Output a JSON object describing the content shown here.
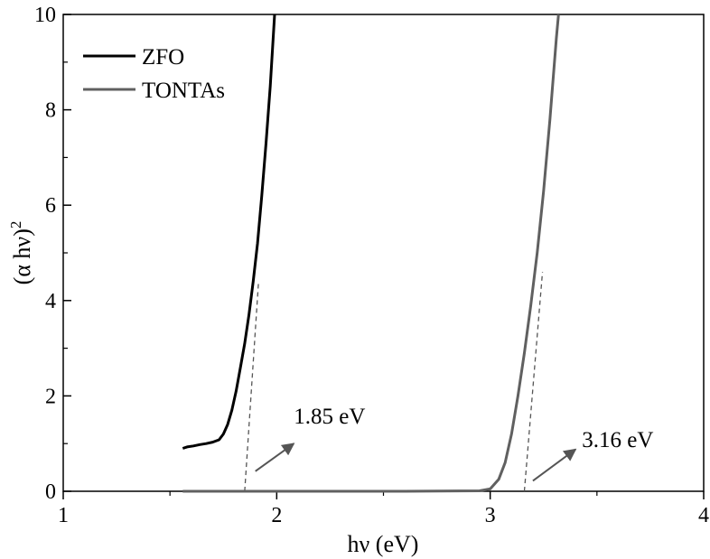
{
  "chart_data": {
    "type": "line",
    "title": "",
    "xlabel": "hν (eV)",
    "ylabel_main": "(α hν)",
    "ylabel_sup": "2",
    "xlim": [
      1,
      4
    ],
    "ylim": [
      0,
      10
    ],
    "x_ticks": [
      1,
      2,
      3,
      4
    ],
    "x_tick_labels": [
      "1",
      "2",
      "3",
      "4"
    ],
    "y_ticks": [
      0,
      2,
      4,
      6,
      8,
      10
    ],
    "y_tick_labels": [
      "0",
      "2",
      "4",
      "6",
      "8",
      "10"
    ],
    "grid": false,
    "legend_position": "top-left",
    "series": [
      {
        "name": "ZFO",
        "color": "#000000",
        "points": [
          [
            1.56,
            0.9
          ],
          [
            1.58,
            0.93
          ],
          [
            1.61,
            0.95
          ],
          [
            1.64,
            0.98
          ],
          [
            1.67,
            1.0
          ],
          [
            1.7,
            1.03
          ],
          [
            1.73,
            1.08
          ],
          [
            1.75,
            1.2
          ],
          [
            1.77,
            1.4
          ],
          [
            1.79,
            1.7
          ],
          [
            1.81,
            2.1
          ],
          [
            1.83,
            2.6
          ],
          [
            1.85,
            3.1
          ],
          [
            1.87,
            3.7
          ],
          [
            1.89,
            4.4
          ],
          [
            1.91,
            5.2
          ],
          [
            1.93,
            6.2
          ],
          [
            1.95,
            7.3
          ],
          [
            1.97,
            8.5
          ],
          [
            1.99,
            10.0
          ]
        ]
      },
      {
        "name": "TONTAs",
        "color": "#606060",
        "points": [
          [
            1.56,
            0.0
          ],
          [
            1.8,
            0.0
          ],
          [
            2.2,
            0.0
          ],
          [
            2.6,
            0.0
          ],
          [
            2.95,
            0.01
          ],
          [
            3.0,
            0.05
          ],
          [
            3.04,
            0.25
          ],
          [
            3.07,
            0.6
          ],
          [
            3.1,
            1.2
          ],
          [
            3.13,
            2.0
          ],
          [
            3.16,
            2.9
          ],
          [
            3.19,
            3.9
          ],
          [
            3.22,
            5.0
          ],
          [
            3.25,
            6.3
          ],
          [
            3.28,
            7.8
          ],
          [
            3.31,
            9.5
          ],
          [
            3.32,
            10.0
          ]
        ]
      }
    ],
    "tangent_lines": [
      {
        "x": [
          1.85,
          1.915
        ],
        "y": [
          0.0,
          4.4
        ]
      },
      {
        "x": [
          3.16,
          3.245
        ],
        "y": [
          0.0,
          4.6
        ]
      }
    ],
    "annotations": [
      {
        "text": "1.85 eV",
        "x": 2.08,
        "y": 1.42,
        "arrow_from": [
          1.9,
          0.42
        ],
        "arrow_to": [
          2.08,
          1.0
        ]
      },
      {
        "text": "3.16 eV",
        "x": 3.43,
        "y": 0.93,
        "arrow_from": [
          3.2,
          0.22
        ],
        "arrow_to": [
          3.4,
          0.88
        ]
      }
    ]
  }
}
